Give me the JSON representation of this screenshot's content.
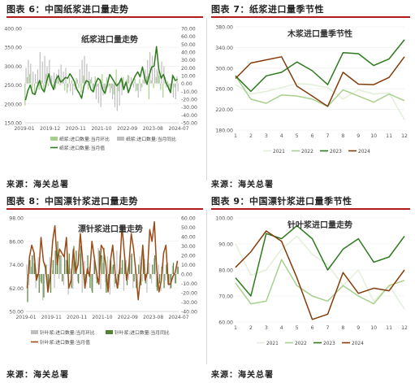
{
  "panels": [
    {
      "header": "图表 6：中国纸浆进口量走势",
      "source": "来源：海关总署",
      "chart_data": {
        "type": "bar+line",
        "title": "纸浆进口量走势",
        "x_tick_labels": [
          "2019-01",
          "2019-12",
          "2020-11",
          "2021-10",
          "2022-09",
          "2023-08",
          "2024-07"
        ],
        "left_axis_ticks": [
          "400.00",
          "350.00",
          "300.00",
          "250.00",
          "200.00",
          "150.00"
        ],
        "left_ylim": [
          150,
          400
        ],
        "right_axis_ticks": [
          "70.00",
          "60.00",
          "50.00",
          "40.00",
          "30.00",
          "20.00",
          "10.00",
          "0.00",
          "-10.00",
          "-20.00",
          "-30.00",
          "-40.00",
          "-50.00"
        ],
        "right_ylim": [
          -50,
          70
        ],
        "series": [
          {
            "name": "纸浆:进口数量:当月环比",
            "kind": "bar",
            "axis": "right",
            "color": "#a8d08d",
            "values": [
              -28,
              8,
              12,
              -6,
              -14,
              2,
              -8,
              4,
              -10,
              12,
              -3,
              2,
              -4,
              -7,
              10,
              -2,
              6,
              -9,
              -12,
              8,
              4,
              -3,
              7,
              -6,
              -12,
              10,
              3,
              -8,
              5,
              -10,
              9,
              -4,
              6,
              12,
              -9,
              8,
              -3,
              -6,
              -14,
              18,
              -10,
              5,
              8,
              -2,
              11,
              -7,
              3,
              6,
              -9,
              6,
              -5,
              8,
              9,
              -20,
              4,
              -6,
              8,
              15,
              -8,
              -18,
              8,
              3,
              -10,
              12,
              -5,
              9
            ]
          },
          {
            "name": "纸浆:进口数量:当月同比",
            "kind": "bar",
            "axis": "right",
            "color": "#bfbfbf",
            "values": [
              20,
              30,
              25,
              15,
              12,
              18,
              40,
              28,
              35,
              22,
              30,
              10,
              14,
              12,
              18,
              24,
              15,
              20,
              -5,
              -10,
              -15,
              -8,
              5,
              18,
              30,
              35,
              25,
              15,
              8,
              -10,
              -20,
              -25,
              -30,
              -15,
              -8,
              -5,
              -12,
              -20,
              -30,
              -35,
              -28,
              -15,
              -8,
              5,
              10,
              8,
              -5,
              -10,
              -18,
              -10,
              5,
              18,
              30,
              40,
              35,
              20,
              18,
              10,
              28,
              22,
              -5,
              -8,
              -12,
              -18,
              -20,
              -10
            ]
          },
          {
            "name": "纸浆:进口数量:当月值",
            "kind": "line",
            "axis": "left",
            "color": "#2d7a1e",
            "values": [
              210,
              235,
              250,
              228,
              225,
              245,
              262,
              240,
              232,
              258,
              280,
              252,
              238,
              265,
              275,
              258,
              262,
              270,
              268,
              280,
              270,
              258,
              238,
              228,
              215,
              248,
              262,
              258,
              238,
              232,
              255,
              268,
              262,
              238,
              228,
              252,
              278,
              268,
              258,
              248,
              255,
              268,
              238,
              258,
              230,
              248,
              262,
              275,
              285,
              272,
              298,
              268,
              252,
              278,
              298,
              300,
              352,
              292,
              268,
              278,
              258,
              245,
              230,
              275,
              262,
              265
            ]
          }
        ],
        "legend_placement": "bottom"
      }
    },
    {
      "header": "图表 7：纸浆进口量季节性",
      "source": "来源：海关总署",
      "chart_data": {
        "type": "line",
        "title": "木浆进口量季节性",
        "categories": [
          "1",
          "2",
          "3",
          "4",
          "5",
          "6",
          "7",
          "8",
          "9",
          "10",
          "11",
          "12"
        ],
        "y_axis_ticks": [
          "380.00",
          "340.00",
          "300.00",
          "260.00",
          "220.00",
          "180.00"
        ],
        "ylim": [
          180,
          380
        ],
        "series": [
          {
            "name": "2021",
            "color": "#e2efd9",
            "values": [
              268,
              250,
              255,
              262,
              270,
              268,
              262,
              240,
              258,
              250,
              252,
              200
            ]
          },
          {
            "name": "2022",
            "color": "#a8d08d",
            "values": [
              285,
              240,
              232,
              248,
              246,
              240,
              226,
              258,
              246,
              234,
              250,
              237
            ]
          },
          {
            "name": "2023",
            "color": "#2d7a1e",
            "values": [
              285,
              255,
              285,
              292,
              312,
              295,
              268,
              330,
              328,
              305,
              318,
              355
            ]
          },
          {
            "name": "2024",
            "color": "#833c0b",
            "values": [
              280,
              310,
              316,
              322,
              265,
              246,
              226,
              292,
              269,
              268,
              282,
              322
            ]
          }
        ],
        "legend_placement": "bottom"
      }
    },
    {
      "header": "图表 8：中国漂针浆进口量走势",
      "source": "来源：海关总署",
      "chart_data": {
        "type": "bar+line",
        "title": "漂针浆进口量走势",
        "x_tick_labels": [
          "2019-01",
          "2019-11",
          "2020-11",
          "2021-10",
          "2022-09",
          "2023-08",
          "2024-07"
        ],
        "left_axis_ticks": [
          "98.00",
          "86.00",
          "74.00",
          "62.00",
          "50.00"
        ],
        "left_ylim": [
          50,
          98
        ],
        "right_axis_ticks": [
          "60.00",
          "50.00",
          "40.00",
          "30.00",
          "20.00",
          "10.00",
          "0.00",
          "-10.00",
          "-20.00",
          "-30.00",
          "-40.00"
        ],
        "right_ylim": [
          -40,
          60
        ],
        "series": [
          {
            "name": "针叶浆:进口数量:当月环比",
            "kind": "bar",
            "axis": "right",
            "color": "#bfbfbf",
            "values": [
              10,
              -12,
              8,
              22,
              -15,
              18,
              -8,
              -28,
              12,
              -20,
              18,
              4,
              -15,
              14,
              -5,
              20,
              -12,
              15,
              -22,
              6,
              -16,
              13,
              -8,
              22,
              -20,
              14,
              -10,
              8,
              -18,
              15,
              -5,
              28,
              -16,
              12,
              -9,
              19,
              -22,
              8,
              -14,
              25,
              -12,
              7,
              -18,
              15,
              -6,
              20,
              -15,
              9,
              -12,
              19,
              -8,
              16,
              -20,
              12,
              -10,
              17,
              -14,
              10,
              -18,
              15,
              -7,
              12,
              -16,
              9,
              -10,
              14
            ]
          },
          {
            "name": "针叶浆:进口数量:当月同比",
            "kind": "bar",
            "axis": "right",
            "color": "#548235",
            "values": [
              -30,
              15,
              20,
              12,
              -5,
              -20,
              -10,
              -25,
              10,
              -15,
              -20,
              15,
              25,
              35,
              20,
              -8,
              25,
              15,
              22,
              -15,
              30,
              25,
              -10,
              30,
              12,
              -10,
              20,
              -15,
              -20,
              15,
              -10,
              25,
              20,
              28,
              -20,
              -15,
              15,
              10,
              -10,
              -15,
              20,
              15,
              18,
              -12,
              15,
              22,
              -8,
              -15,
              10,
              -12,
              25,
              -10,
              15,
              -5,
              10,
              20,
              -18,
              -10,
              8,
              -15,
              10,
              -12,
              -15,
              12,
              -10,
              8
            ]
          },
          {
            "name": "针叶浆:进口数量:当月值",
            "kind": "line",
            "axis": "left",
            "color": "#9c4a16",
            "values": [
              62,
              78,
              84,
              80,
              66,
              70,
              88,
              76,
              72,
              60,
              68,
              86,
              94,
              74,
              82,
              80,
              78,
              88,
              62,
              66,
              82,
              70,
              74,
              90,
              76,
              62,
              72,
              68,
              86,
              78,
              70,
              64,
              84,
              82,
              74,
              60,
              76,
              84,
              70,
              62,
              72,
              94,
              80,
              66,
              74,
              90,
              82,
              70,
              56,
              68,
              84,
              66,
              70,
              92,
              86,
              96,
              72,
              60,
              66,
              80,
              84,
              64,
              64,
              68,
              70,
              76
            ]
          }
        ],
        "legend_placement": "bottom"
      }
    },
    {
      "header": "图表 9：中国漂针浆进口量季节性",
      "source": "来源：海关总署",
      "chart_data": {
        "type": "line",
        "title": "针叶浆进口量走势",
        "categories": [
          "1",
          "2",
          "3",
          "4",
          "5",
          "6",
          "7",
          "8",
          "9",
          "10",
          "11",
          "12"
        ],
        "y_axis_ticks": [
          "100.00",
          "90.00",
          "80.00",
          "70.00",
          "60.00"
        ],
        "ylim": [
          60,
          100
        ],
        "series": [
          {
            "name": "2021",
            "color": "#e2efd9",
            "values": [
              90,
              78,
              80,
              88,
              93,
              86,
              82,
              74,
              80,
              68,
              74,
              65
            ]
          },
          {
            "name": "2022",
            "color": "#a8d08d",
            "values": [
              75,
              67,
              68,
              84,
              74,
              70,
              68,
              74,
              70,
              67,
              74,
              76
            ]
          },
          {
            "name": "2023",
            "color": "#2d7a1e",
            "values": [
              77,
              70,
              94,
              92,
              97,
              92,
              80,
              88,
              92,
              83,
              85,
              93
            ]
          },
          {
            "name": "2024",
            "color": "#833c0b",
            "values": [
              81,
              87,
              95,
              91,
              77,
              61,
              63,
              79,
              71,
              73,
              72,
              80
            ]
          }
        ],
        "legend_placement": "bottom"
      }
    }
  ]
}
